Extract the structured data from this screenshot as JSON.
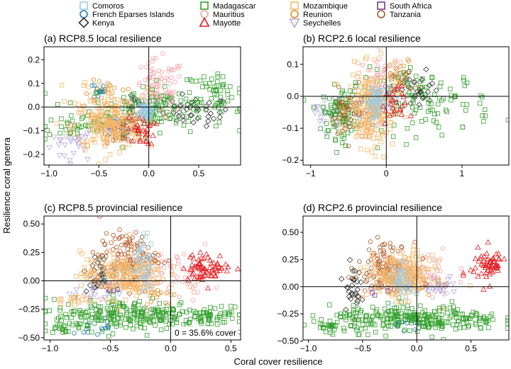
{
  "figure": {
    "ylabel": "Resilience coral genera",
    "xlabel": "Coral cover resilience",
    "legend": {
      "placement": "top",
      "entries": [
        {
          "label": "Comoros",
          "color": "#9ecae1",
          "marker": "square"
        },
        {
          "label": "French Eparses Islands",
          "color": "#1f78b4",
          "marker": "circle"
        },
        {
          "label": "Kenya",
          "color": "#333333",
          "marker": "diamond"
        },
        {
          "label": "Madagascar",
          "color": "#33a02c",
          "marker": "square"
        },
        {
          "label": "Mauritius",
          "color": "#f4a3a8",
          "marker": "circle"
        },
        {
          "label": "Mayotte",
          "color": "#e31a1c",
          "marker": "triangle"
        },
        {
          "label": "Mozambique",
          "color": "#f5b76a",
          "marker": "square"
        },
        {
          "label": "Reunion",
          "color": "#e08a1e",
          "marker": "circle"
        },
        {
          "label": "Seychelles",
          "color": "#b7a6d9",
          "marker": "triangle-down"
        },
        {
          "label": "South Africa",
          "color": "#6a3d9a",
          "marker": "square"
        },
        {
          "label": "Tanzania",
          "color": "#b15928",
          "marker": "circle"
        }
      ]
    }
  },
  "chart_data": [
    {
      "type": "scatter",
      "title": "(a) RCP8.5 local resilience",
      "xlim": [
        -1.05,
        0.92
      ],
      "ylim": [
        -0.245,
        0.255
      ],
      "xticks": [
        -1.0,
        -0.5,
        0.0,
        0.5
      ],
      "xtick_labels": [
        "−1.0",
        "−0.5",
        "0.0",
        "0.5"
      ],
      "yticks": [
        -0.2,
        -0.1,
        0.0,
        0.1,
        0.2
      ],
      "ytick_labels": [
        "−0.2",
        "−0.1",
        "0.0",
        "0.1",
        "0.2"
      ],
      "reference_lines": {
        "x": 0,
        "y": 0
      },
      "series": [
        {
          "name": "Comoros",
          "clusters": [
            {
              "cx": -0.05,
              "cy": -0.02,
              "sx": 0.05,
              "sy": 0.02,
              "n": 45
            }
          ]
        },
        {
          "name": "French Eparses Islands",
          "clusters": [
            {
              "cx": -0.5,
              "cy": 0.07,
              "sx": 0.03,
              "sy": 0.02,
              "n": 15
            },
            {
              "cx": -0.3,
              "cy": -0.08,
              "sx": 0.1,
              "sy": 0.03,
              "n": 20
            }
          ]
        },
        {
          "name": "Kenya",
          "clusters": [
            {
              "cx": 0.45,
              "cy": -0.02,
              "sx": 0.18,
              "sy": 0.03,
              "n": 40
            },
            {
              "cx": -0.15,
              "cy": 0.02,
              "sx": 0.05,
              "sy": 0.02,
              "n": 10
            }
          ]
        },
        {
          "name": "Madagascar",
          "clusters": [
            {
              "cx": 0.1,
              "cy": 0.0,
              "sx": 0.35,
              "sy": 0.05,
              "n": 150
            },
            {
              "cx": 0.65,
              "cy": 0.07,
              "sx": 0.15,
              "sy": 0.03,
              "n": 35
            },
            {
              "cx": -0.7,
              "cy": -0.08,
              "sx": 0.2,
              "sy": 0.03,
              "n": 40
            }
          ]
        },
        {
          "name": "Mauritius",
          "clusters": [
            {
              "cx": 0.1,
              "cy": 0.08,
              "sx": 0.13,
              "sy": 0.06,
              "n": 80
            }
          ]
        },
        {
          "name": "Mayotte",
          "clusters": [
            {
              "cx": -0.08,
              "cy": -0.1,
              "sx": 0.07,
              "sy": 0.03,
              "n": 30
            }
          ]
        },
        {
          "name": "Mozambique",
          "clusters": [
            {
              "cx": -0.4,
              "cy": -0.08,
              "sx": 0.18,
              "sy": 0.05,
              "n": 200
            },
            {
              "cx": -0.4,
              "cy": 0.06,
              "sx": 0.18,
              "sy": 0.03,
              "n": 30
            }
          ]
        },
        {
          "name": "Reunion",
          "clusters": [
            {
              "cx": -0.4,
              "cy": 0.05,
              "sx": 0.13,
              "sy": 0.03,
              "n": 20
            }
          ]
        },
        {
          "name": "Seychelles",
          "clusters": [
            {
              "cx": -0.75,
              "cy": -0.15,
              "sx": 0.12,
              "sy": 0.04,
              "n": 30
            }
          ]
        },
        {
          "name": "South Africa",
          "clusters": [
            {
              "cx": -0.3,
              "cy": -0.08,
              "sx": 0.05,
              "sy": 0.02,
              "n": 8
            }
          ]
        },
        {
          "name": "Tanzania",
          "clusters": [
            {
              "cx": -0.25,
              "cy": -0.09,
              "sx": 0.1,
              "sy": 0.03,
              "n": 50
            }
          ]
        }
      ]
    },
    {
      "type": "scatter",
      "title": "(b) RCP2.6 local resilience",
      "xlim": [
        -1.1,
        1.62
      ],
      "ylim": [
        -0.215,
        0.155
      ],
      "xticks": [
        -1,
        0,
        1
      ],
      "xtick_labels": [
        "−1",
        "0",
        "1"
      ],
      "yticks": [
        -0.2,
        -0.1,
        0.0,
        0.1
      ],
      "ytick_labels": [
        "−0.2",
        "−0.1",
        "0.0",
        "0.1"
      ],
      "reference_lines": {
        "x": 0,
        "y": 0
      },
      "series": [
        {
          "name": "Comoros",
          "clusters": [
            {
              "cx": -0.15,
              "cy": -0.02,
              "sx": 0.08,
              "sy": 0.03,
              "n": 60
            }
          ]
        },
        {
          "name": "French Eparses Islands",
          "clusters": [
            {
              "cx": 0.05,
              "cy": 0.01,
              "sx": 0.06,
              "sy": 0.02,
              "n": 15
            }
          ]
        },
        {
          "name": "Kenya",
          "clusters": [
            {
              "cx": 0.4,
              "cy": 0.02,
              "sx": 0.15,
              "sy": 0.03,
              "n": 35
            }
          ]
        },
        {
          "name": "Madagascar",
          "clusters": [
            {
              "cx": -0.6,
              "cy": -0.05,
              "sx": 0.12,
              "sy": 0.04,
              "n": 90
            },
            {
              "cx": 0.5,
              "cy": -0.02,
              "sx": 0.45,
              "sy": 0.05,
              "n": 110
            }
          ]
        },
        {
          "name": "Mauritius",
          "clusters": [
            {
              "cx": -0.05,
              "cy": 0.04,
              "sx": 0.15,
              "sy": 0.05,
              "n": 70
            }
          ]
        },
        {
          "name": "Mayotte",
          "clusters": [
            {
              "cx": 0.1,
              "cy": -0.03,
              "sx": 0.08,
              "sy": 0.03,
              "n": 25
            }
          ]
        },
        {
          "name": "Mozambique",
          "clusters": [
            {
              "cx": -0.2,
              "cy": -0.04,
              "sx": 0.15,
              "sy": 0.06,
              "n": 220
            }
          ]
        },
        {
          "name": "Reunion",
          "clusters": [
            {
              "cx": 0.2,
              "cy": 0.06,
              "sx": 0.1,
              "sy": 0.03,
              "n": 25
            }
          ]
        },
        {
          "name": "Seychelles",
          "clusters": [
            {
              "cx": -0.75,
              "cy": -0.05,
              "sx": 0.1,
              "sy": 0.03,
              "n": 30
            }
          ]
        },
        {
          "name": "South Africa",
          "clusters": [
            {
              "cx": -0.4,
              "cy": -0.05,
              "sx": 0.05,
              "sy": 0.02,
              "n": 8
            }
          ]
        },
        {
          "name": "Tanzania",
          "clusters": [
            {
              "cx": -0.5,
              "cy": -0.06,
              "sx": 0.12,
              "sy": 0.04,
              "n": 50
            }
          ]
        }
      ]
    },
    {
      "type": "scatter",
      "title": "(c) RCP8.5 provincial resilience",
      "xlim": [
        -1.05,
        0.58
      ],
      "ylim": [
        -0.52,
        0.57
      ],
      "xticks": [
        -1.0,
        -0.5,
        0.0,
        0.5
      ],
      "xtick_labels": [
        "−1.0",
        "−0.5",
        "0.0",
        "0.5"
      ],
      "yticks": [
        -0.5,
        -0.25,
        0.0,
        0.25,
        0.5
      ],
      "ytick_labels": [
        "−0.50",
        "−0.25",
        "0.00",
        "0.25",
        "0.50"
      ],
      "reference_lines": {
        "x": 0,
        "y": 0
      },
      "annotation": "0 = 35.6% cover",
      "series": [
        {
          "name": "Comoros",
          "clusters": [
            {
              "cx": -0.22,
              "cy": 0.15,
              "sx": 0.04,
              "sy": 0.12,
              "n": 40
            }
          ]
        },
        {
          "name": "French Eparses Islands",
          "clusters": [
            {
              "cx": -0.6,
              "cy": -0.4,
              "sx": 0.06,
              "sy": 0.04,
              "n": 15
            },
            {
              "cx": -0.4,
              "cy": 0.05,
              "sx": 0.1,
              "sy": 0.05,
              "n": 15
            }
          ]
        },
        {
          "name": "Kenya",
          "clusters": [
            {
              "cx": -0.6,
              "cy": 0.05,
              "sx": 0.06,
              "sy": 0.1,
              "n": 30
            }
          ]
        },
        {
          "name": "Madagascar",
          "clusters": [
            {
              "cx": -0.3,
              "cy": -0.3,
              "sx": 0.35,
              "sy": 0.07,
              "n": 260
            },
            {
              "cx": 0.35,
              "cy": -0.3,
              "sx": 0.12,
              "sy": 0.05,
              "n": 40
            },
            {
              "cx": -0.9,
              "cy": -0.4,
              "sx": 0.08,
              "sy": 0.03,
              "n": 20
            }
          ]
        },
        {
          "name": "Mauritius",
          "clusters": [
            {
              "cx": 0.0,
              "cy": 0.05,
              "sx": 0.18,
              "sy": 0.1,
              "n": 60
            }
          ]
        },
        {
          "name": "Mayotte",
          "clusters": [
            {
              "cx": 0.3,
              "cy": 0.12,
              "sx": 0.1,
              "sy": 0.06,
              "n": 70
            }
          ]
        },
        {
          "name": "Mozambique",
          "clusters": [
            {
              "cx": -0.4,
              "cy": 0.05,
              "sx": 0.17,
              "sy": 0.1,
              "n": 220
            },
            {
              "cx": -0.8,
              "cy": -0.15,
              "sx": 0.08,
              "sy": 0.05,
              "n": 20
            }
          ]
        },
        {
          "name": "Reunion",
          "clusters": [
            {
              "cx": -0.15,
              "cy": -0.1,
              "sx": 0.08,
              "sy": 0.05,
              "n": 20
            }
          ]
        },
        {
          "name": "Seychelles",
          "clusters": [
            {
              "cx": -0.6,
              "cy": -0.1,
              "sx": 0.1,
              "sy": 0.05,
              "n": 30
            }
          ]
        },
        {
          "name": "South Africa",
          "clusters": [
            {
              "cx": -0.5,
              "cy": -0.05,
              "sx": 0.05,
              "sy": 0.03,
              "n": 8
            }
          ]
        },
        {
          "name": "Tanzania",
          "clusters": [
            {
              "cx": -0.35,
              "cy": 0.22,
              "sx": 0.12,
              "sy": 0.1,
              "n": 110
            }
          ]
        }
      ]
    },
    {
      "type": "scatter",
      "title": "(d) RCP2.6 provincial resilience",
      "xlim": [
        -1.05,
        0.85
      ],
      "ylim": [
        -0.49,
        0.65
      ],
      "xticks": [
        -1.0,
        -0.5,
        0.0,
        0.5
      ],
      "xtick_labels": [
        "−1.0",
        "−0.5",
        "0.0",
        "0.5"
      ],
      "yticks": [
        -0.5,
        -0.25,
        0.0,
        0.25,
        0.5
      ],
      "ytick_labels": [
        "−0.50",
        "−0.25",
        "0.00",
        "0.25",
        "0.50"
      ],
      "reference_lines": {
        "x": 0,
        "y": 0
      },
      "series": [
        {
          "name": "Comoros",
          "clusters": [
            {
              "cx": -0.12,
              "cy": 0.05,
              "sx": 0.05,
              "sy": 0.08,
              "n": 40
            }
          ]
        },
        {
          "name": "French Eparses Islands",
          "clusters": [
            {
              "cx": -0.1,
              "cy": -0.35,
              "sx": 0.08,
              "sy": 0.03,
              "n": 15
            }
          ]
        },
        {
          "name": "Kenya",
          "clusters": [
            {
              "cx": -0.6,
              "cy": 0.0,
              "sx": 0.04,
              "sy": 0.1,
              "n": 30
            }
          ]
        },
        {
          "name": "Madagascar",
          "clusters": [
            {
              "cx": 0.0,
              "cy": -0.3,
              "sx": 0.4,
              "sy": 0.06,
              "n": 280
            },
            {
              "cx": -0.85,
              "cy": -0.38,
              "sx": 0.08,
              "sy": 0.03,
              "n": 20
            }
          ]
        },
        {
          "name": "Mauritius",
          "clusters": [
            {
              "cx": 0.0,
              "cy": 0.12,
              "sx": 0.18,
              "sy": 0.12,
              "n": 60
            }
          ]
        },
        {
          "name": "Mayotte",
          "clusters": [
            {
              "cx": 0.65,
              "cy": 0.2,
              "sx": 0.08,
              "sy": 0.08,
              "n": 60
            }
          ]
        },
        {
          "name": "Mozambique",
          "clusters": [
            {
              "cx": -0.15,
              "cy": 0.1,
              "sx": 0.15,
              "sy": 0.1,
              "n": 220
            }
          ]
        },
        {
          "name": "Reunion",
          "clusters": [
            {
              "cx": -0.05,
              "cy": 0.02,
              "sx": 0.1,
              "sy": 0.05,
              "n": 20
            }
          ]
        },
        {
          "name": "Seychelles",
          "clusters": [
            {
              "cx": 0.2,
              "cy": 0.0,
              "sx": 0.1,
              "sy": 0.05,
              "n": 30
            }
          ]
        },
        {
          "name": "South Africa",
          "clusters": [
            {
              "cx": -0.35,
              "cy": -0.02,
              "sx": 0.05,
              "sy": 0.03,
              "n": 8
            }
          ]
        },
        {
          "name": "Tanzania",
          "clusters": [
            {
              "cx": -0.3,
              "cy": 0.2,
              "sx": 0.12,
              "sy": 0.1,
              "n": 110
            }
          ]
        }
      ]
    }
  ]
}
